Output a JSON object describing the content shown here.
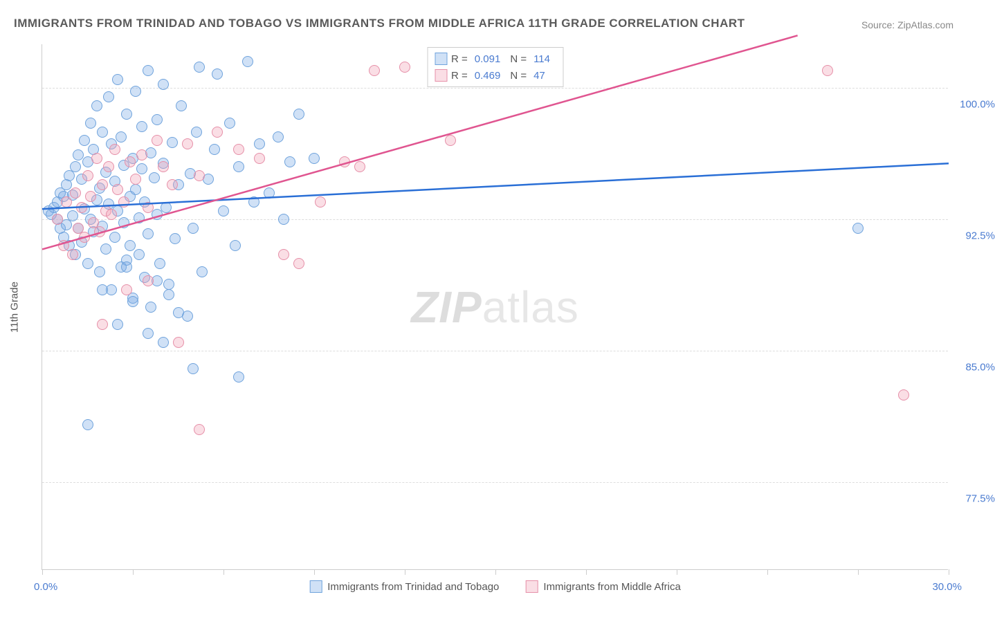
{
  "title": "IMMIGRANTS FROM TRINIDAD AND TOBAGO VS IMMIGRANTS FROM MIDDLE AFRICA 11TH GRADE CORRELATION CHART",
  "source": "Source: ZipAtlas.com",
  "ylabel": "11th Grade",
  "watermark_a": "ZIP",
  "watermark_b": "atlas",
  "chart": {
    "type": "scatter",
    "xlim": [
      0,
      30
    ],
    "ylim": [
      72.5,
      102.5
    ],
    "x_start_label": "0.0%",
    "x_end_label": "30.0%",
    "xtick_positions": [
      0,
      3,
      6,
      9,
      12,
      15,
      18,
      21,
      24,
      27,
      30
    ],
    "ytick_labels": [
      "100.0%",
      "92.5%",
      "85.0%",
      "77.5%"
    ],
    "ytick_values": [
      100.0,
      92.5,
      85.0,
      77.5
    ],
    "grid_color": "#dddddd",
    "background_color": "#ffffff",
    "series": [
      {
        "name": "Immigrants from Trinidad and Tobago",
        "fill": "rgba(120,170,230,0.35)",
        "stroke": "#6fa3dc",
        "line_color": "#2a6fd6",
        "R": "0.091",
        "N": "114",
        "regression": {
          "x1": 0,
          "y1": 93.1,
          "x2": 30,
          "y2": 95.7
        },
        "points": [
          [
            0.2,
            93.0
          ],
          [
            0.3,
            92.8
          ],
          [
            0.4,
            93.2
          ],
          [
            0.5,
            92.5
          ],
          [
            0.5,
            93.5
          ],
          [
            0.6,
            92.0
          ],
          [
            0.6,
            94.0
          ],
          [
            0.7,
            91.5
          ],
          [
            0.7,
            93.8
          ],
          [
            0.8,
            92.2
          ],
          [
            0.8,
            94.5
          ],
          [
            0.9,
            91.0
          ],
          [
            0.9,
            95.0
          ],
          [
            1.0,
            92.7
          ],
          [
            1.0,
            93.9
          ],
          [
            1.1,
            90.5
          ],
          [
            1.1,
            95.5
          ],
          [
            1.2,
            92.0
          ],
          [
            1.2,
            96.2
          ],
          [
            1.3,
            91.2
          ],
          [
            1.3,
            94.8
          ],
          [
            1.4,
            93.1
          ],
          [
            1.4,
            97.0
          ],
          [
            1.5,
            90.0
          ],
          [
            1.5,
            95.8
          ],
          [
            1.6,
            92.5
          ],
          [
            1.6,
            98.0
          ],
          [
            1.7,
            91.8
          ],
          [
            1.7,
            96.5
          ],
          [
            1.8,
            93.6
          ],
          [
            1.8,
            99.0
          ],
          [
            1.9,
            89.5
          ],
          [
            1.9,
            94.3
          ],
          [
            2.0,
            92.1
          ],
          [
            2.0,
            97.5
          ],
          [
            2.1,
            90.8
          ],
          [
            2.1,
            95.2
          ],
          [
            2.2,
            93.4
          ],
          [
            2.2,
            99.5
          ],
          [
            2.3,
            88.5
          ],
          [
            2.3,
            96.8
          ],
          [
            2.4,
            91.5
          ],
          [
            2.4,
            94.7
          ],
          [
            2.5,
            93.0
          ],
          [
            2.5,
            100.5
          ],
          [
            2.6,
            89.8
          ],
          [
            2.6,
            97.2
          ],
          [
            2.7,
            92.3
          ],
          [
            2.7,
            95.6
          ],
          [
            2.8,
            90.2
          ],
          [
            2.8,
            98.5
          ],
          [
            2.9,
            93.8
          ],
          [
            2.9,
            91.0
          ],
          [
            3.0,
            96.0
          ],
          [
            3.0,
            88.0
          ],
          [
            3.1,
            94.2
          ],
          [
            3.1,
            99.8
          ],
          [
            3.2,
            92.6
          ],
          [
            3.2,
            90.5
          ],
          [
            3.3,
            97.8
          ],
          [
            3.3,
            95.4
          ],
          [
            3.4,
            89.2
          ],
          [
            3.4,
            93.5
          ],
          [
            3.5,
            101.0
          ],
          [
            3.5,
            91.7
          ],
          [
            3.6,
            96.3
          ],
          [
            3.6,
            87.5
          ],
          [
            3.7,
            94.9
          ],
          [
            3.8,
            92.8
          ],
          [
            3.8,
            98.2
          ],
          [
            3.9,
            90.0
          ],
          [
            4.0,
            95.7
          ],
          [
            4.0,
            100.2
          ],
          [
            4.1,
            93.2
          ],
          [
            4.2,
            88.8
          ],
          [
            4.3,
            96.9
          ],
          [
            4.4,
            91.4
          ],
          [
            4.5,
            94.5
          ],
          [
            4.6,
            99.0
          ],
          [
            4.8,
            87.0
          ],
          [
            4.9,
            95.1
          ],
          [
            5.0,
            92.0
          ],
          [
            5.1,
            97.5
          ],
          [
            5.2,
            101.2
          ],
          [
            5.3,
            89.5
          ],
          [
            5.5,
            94.8
          ],
          [
            5.7,
            96.5
          ],
          [
            5.8,
            100.8
          ],
          [
            6.0,
            93.0
          ],
          [
            6.2,
            98.0
          ],
          [
            6.4,
            91.0
          ],
          [
            6.5,
            95.5
          ],
          [
            6.8,
            101.5
          ],
          [
            7.0,
            93.5
          ],
          [
            7.2,
            96.8
          ],
          [
            7.5,
            94.0
          ],
          [
            7.8,
            97.2
          ],
          [
            8.0,
            92.5
          ],
          [
            8.2,
            95.8
          ],
          [
            8.5,
            98.5
          ],
          [
            9.0,
            96.0
          ],
          [
            1.5,
            80.8
          ],
          [
            2.5,
            86.5
          ],
          [
            3.0,
            87.8
          ],
          [
            3.5,
            86.0
          ],
          [
            4.2,
            88.2
          ],
          [
            3.8,
            89.0
          ],
          [
            2.0,
            88.5
          ],
          [
            2.8,
            89.8
          ],
          [
            4.0,
            85.5
          ],
          [
            4.5,
            87.2
          ],
          [
            5.0,
            84.0
          ],
          [
            6.5,
            83.5
          ],
          [
            27.0,
            92.0
          ]
        ]
      },
      {
        "name": "Immigrants from Middle Africa",
        "fill": "rgba(240,160,180,0.35)",
        "stroke": "#e68fa8",
        "line_color": "#e05590",
        "R": "0.469",
        "N": "47",
        "regression": {
          "x1": 0,
          "y1": 90.8,
          "x2": 25,
          "y2": 103.0
        },
        "points": [
          [
            0.5,
            92.5
          ],
          [
            0.7,
            91.0
          ],
          [
            0.8,
            93.5
          ],
          [
            1.0,
            90.5
          ],
          [
            1.1,
            94.0
          ],
          [
            1.2,
            92.0
          ],
          [
            1.3,
            93.2
          ],
          [
            1.4,
            91.5
          ],
          [
            1.5,
            95.0
          ],
          [
            1.6,
            93.8
          ],
          [
            1.7,
            92.3
          ],
          [
            1.8,
            96.0
          ],
          [
            1.9,
            91.8
          ],
          [
            2.0,
            94.5
          ],
          [
            2.1,
            93.0
          ],
          [
            2.2,
            95.5
          ],
          [
            2.3,
            92.8
          ],
          [
            2.4,
            96.5
          ],
          [
            2.5,
            94.2
          ],
          [
            2.7,
            93.5
          ],
          [
            2.9,
            95.8
          ],
          [
            3.1,
            94.8
          ],
          [
            3.3,
            96.2
          ],
          [
            3.5,
            93.2
          ],
          [
            3.8,
            97.0
          ],
          [
            4.0,
            95.5
          ],
          [
            4.3,
            94.5
          ],
          [
            4.8,
            96.8
          ],
          [
            5.2,
            95.0
          ],
          [
            5.8,
            97.5
          ],
          [
            6.5,
            96.5
          ],
          [
            7.2,
            96.0
          ],
          [
            8.0,
            90.5
          ],
          [
            8.5,
            90.0
          ],
          [
            9.2,
            93.5
          ],
          [
            10.0,
            95.8
          ],
          [
            10.5,
            95.5
          ],
          [
            11.0,
            101.0
          ],
          [
            12.0,
            101.2
          ],
          [
            13.5,
            97.0
          ],
          [
            2.0,
            86.5
          ],
          [
            2.8,
            88.5
          ],
          [
            3.5,
            89.0
          ],
          [
            4.5,
            85.5
          ],
          [
            5.2,
            80.5
          ],
          [
            26.0,
            101.0
          ],
          [
            28.5,
            82.5
          ]
        ]
      }
    ]
  },
  "legend": {
    "r_label": "R =",
    "n_label": "N ="
  },
  "bottom_legend": [
    "Immigrants from Trinidad and Tobago",
    "Immigrants from Middle Africa"
  ]
}
